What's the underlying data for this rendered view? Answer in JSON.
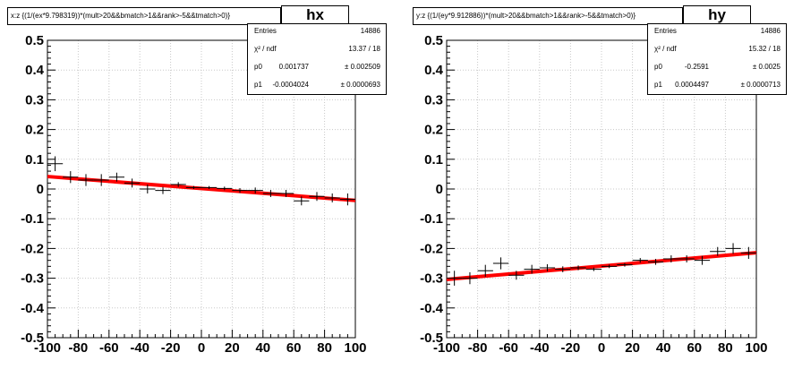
{
  "chart_data": [
    {
      "type": "scatter",
      "name": "hx",
      "title": "x:z {(1/(ex*9.798319))*(mult>20&&bmatch>1&&rank>-5&&tmatch>0)}",
      "xlim": [
        -100,
        100
      ],
      "ylim": [
        -0.5,
        0.5
      ],
      "xticks": [
        "-100",
        "-80",
        "-60",
        "-40",
        "-20",
        "0",
        "20",
        "40",
        "60",
        "80",
        "100"
      ],
      "yticks": [
        "-0.5",
        "-0.4",
        "-0.3",
        "-0.2",
        "-0.1",
        "0",
        "0.1",
        "0.2",
        "0.3",
        "0.4",
        "0.5"
      ],
      "grid": true,
      "points": [
        {
          "x": -95,
          "y": 0.085,
          "ex": 5,
          "ey": 0.025
        },
        {
          "x": -85,
          "y": 0.04,
          "ex": 5,
          "ey": 0.02
        },
        {
          "x": -75,
          "y": 0.03,
          "ex": 5,
          "ey": 0.02
        },
        {
          "x": -65,
          "y": 0.03,
          "ex": 5,
          "ey": 0.02
        },
        {
          "x": -55,
          "y": 0.04,
          "ex": 5,
          "ey": 0.015
        },
        {
          "x": -45,
          "y": 0.02,
          "ex": 5,
          "ey": 0.015
        },
        {
          "x": -35,
          "y": 0.0,
          "ex": 5,
          "ey": 0.015
        },
        {
          "x": -25,
          "y": -0.005,
          "ex": 5,
          "ey": 0.012
        },
        {
          "x": -15,
          "y": 0.015,
          "ex": 5,
          "ey": 0.008
        },
        {
          "x": -5,
          "y": 0.005,
          "ex": 5,
          "ey": 0.005
        },
        {
          "x": 5,
          "y": 0.005,
          "ex": 5,
          "ey": 0.005
        },
        {
          "x": 15,
          "y": 0.002,
          "ex": 5,
          "ey": 0.006
        },
        {
          "x": 25,
          "y": -0.005,
          "ex": 5,
          "ey": 0.008
        },
        {
          "x": 35,
          "y": -0.005,
          "ex": 5,
          "ey": 0.01
        },
        {
          "x": 45,
          "y": -0.015,
          "ex": 5,
          "ey": 0.012
        },
        {
          "x": 55,
          "y": -0.015,
          "ex": 5,
          "ey": 0.012
        },
        {
          "x": 65,
          "y": -0.04,
          "ex": 5,
          "ey": 0.015
        },
        {
          "x": 75,
          "y": -0.025,
          "ex": 5,
          "ey": 0.015
        },
        {
          "x": 85,
          "y": -0.03,
          "ex": 5,
          "ey": 0.015
        },
        {
          "x": 95,
          "y": -0.035,
          "ex": 5,
          "ey": 0.02
        }
      ],
      "fit": {
        "p0": 0.001737,
        "p1": -0.0004024,
        "color": "#ff0000"
      },
      "stats": {
        "entries_label": "Entries",
        "entries_value": "14886",
        "chi2_label": "χ² / ndf",
        "chi2_value": "13.37 / 18",
        "p0_label": "p0",
        "p0_value": "0.001737",
        "p0_error": "± 0.002509",
        "p1_label": "p1",
        "p1_value": "-0.0004024",
        "p1_error": "± 0.0000693"
      }
    },
    {
      "type": "scatter",
      "name": "hy",
      "title": "y:z {(1/(ey*9.912886))*(mult>20&&bmatch>1&&rank>-5&&tmatch>0)}",
      "xlim": [
        -100,
        100
      ],
      "ylim": [
        -0.5,
        0.5
      ],
      "xticks": [
        "-100",
        "-80",
        "-60",
        "-40",
        "-20",
        "0",
        "20",
        "40",
        "60",
        "80",
        "100"
      ],
      "yticks": [
        "-0.5",
        "-0.4",
        "-0.3",
        "-0.2",
        "-0.1",
        "0",
        "0.1",
        "0.2",
        "0.3",
        "0.4",
        "0.5"
      ],
      "grid": true,
      "points": [
        {
          "x": -95,
          "y": -0.3,
          "ex": 5,
          "ey": 0.025
        },
        {
          "x": -85,
          "y": -0.3,
          "ex": 5,
          "ey": 0.02
        },
        {
          "x": -75,
          "y": -0.275,
          "ex": 5,
          "ey": 0.02
        },
        {
          "x": -65,
          "y": -0.25,
          "ex": 5,
          "ey": 0.02
        },
        {
          "x": -55,
          "y": -0.29,
          "ex": 5,
          "ey": 0.015
        },
        {
          "x": -45,
          "y": -0.27,
          "ex": 5,
          "ey": 0.015
        },
        {
          "x": -35,
          "y": -0.265,
          "ex": 5,
          "ey": 0.012
        },
        {
          "x": -25,
          "y": -0.27,
          "ex": 5,
          "ey": 0.01
        },
        {
          "x": -15,
          "y": -0.265,
          "ex": 5,
          "ey": 0.008
        },
        {
          "x": -5,
          "y": -0.27,
          "ex": 5,
          "ey": 0.006
        },
        {
          "x": 5,
          "y": -0.26,
          "ex": 5,
          "ey": 0.006
        },
        {
          "x": 15,
          "y": -0.255,
          "ex": 5,
          "ey": 0.006
        },
        {
          "x": 25,
          "y": -0.24,
          "ex": 5,
          "ey": 0.008
        },
        {
          "x": 35,
          "y": -0.245,
          "ex": 5,
          "ey": 0.01
        },
        {
          "x": 45,
          "y": -0.235,
          "ex": 5,
          "ey": 0.012
        },
        {
          "x": 55,
          "y": -0.235,
          "ex": 5,
          "ey": 0.012
        },
        {
          "x": 65,
          "y": -0.24,
          "ex": 5,
          "ey": 0.015
        },
        {
          "x": 75,
          "y": -0.21,
          "ex": 5,
          "ey": 0.015
        },
        {
          "x": 85,
          "y": -0.2,
          "ex": 5,
          "ey": 0.018
        },
        {
          "x": 95,
          "y": -0.215,
          "ex": 5,
          "ey": 0.02
        }
      ],
      "fit": {
        "p0": -0.2591,
        "p1": 0.0004497,
        "color": "#ff0000"
      },
      "stats": {
        "entries_label": "Entries",
        "entries_value": "14886",
        "chi2_label": "χ² / ndf",
        "chi2_value": "15.32 / 18",
        "p0_label": "p0",
        "p0_value": "-0.2591",
        "p0_error": "± 0.0025",
        "p1_label": "p1",
        "p1_value": "0.0004497",
        "p1_error": "± 0.0000713"
      }
    }
  ]
}
